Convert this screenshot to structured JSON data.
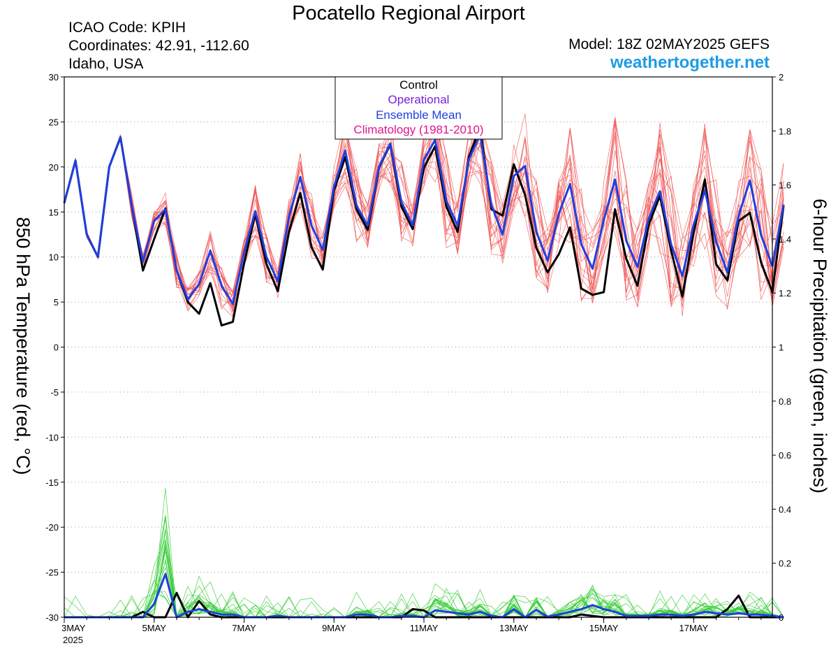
{
  "header": {
    "title": "Pocatello Regional Airport",
    "icao": "ICAO Code: KPIH",
    "coordinates": "Coordinates: 42.91, -112.60",
    "region": "Idaho, USA",
    "model": "Model: 18Z 02MAY2025 GEFS",
    "site": "weathertogether.net"
  },
  "colors": {
    "control": "#000000",
    "operational": "#7a1fd8",
    "ensemble_mean": "#1f3fe0",
    "climatology": "#e0148c",
    "member_temp": "#f05555",
    "member_precip": "#33cc33",
    "site": "#1e9be8"
  },
  "chart_data": {
    "type": "line",
    "left_axis": {
      "label": "850 hPa Temperature (red, °C)",
      "ylim": [
        -30,
        30
      ],
      "ticks": [
        "30",
        "25",
        "20",
        "15",
        "10",
        "5",
        "0",
        "-5",
        "-10",
        "-15",
        "-20",
        "-25",
        "-30"
      ]
    },
    "right_axis": {
      "label": "6-hour Precipitation (green, inches)",
      "ylim": [
        0,
        2
      ],
      "ticks": [
        "2",
        "1.8",
        "1.6",
        "1.4",
        "1.2",
        "1",
        "0.8",
        "0.6",
        "0.4",
        "0.2",
        "0"
      ]
    },
    "x_axis": {
      "range_days": [
        3,
        18.75
      ],
      "tick_labels": [
        {
          "day": 3,
          "label": "3MAY"
        },
        {
          "day": 5,
          "label": "5MAY"
        },
        {
          "day": 7,
          "label": "7MAY"
        },
        {
          "day": 9,
          "label": "9MAY"
        },
        {
          "day": 11,
          "label": "11MAY"
        },
        {
          "day": 13,
          "label": "13MAY"
        },
        {
          "day": 15,
          "label": "15MAY"
        },
        {
          "day": 17,
          "label": "17MAY"
        }
      ],
      "year_label": "2025",
      "step_hours": 6
    },
    "grid": true,
    "legend": {
      "placement": "top-center",
      "entries": [
        "Control",
        "Operational",
        "Ensemble Mean",
        "Climatology (1981-2010)"
      ]
    },
    "series": [
      {
        "name": "Control",
        "quantity": "temperature",
        "values": [
          16,
          20.7,
          12.5,
          10,
          20,
          23.3,
          15.7,
          8.5,
          12,
          15.4,
          8.5,
          5,
          3.7,
          7.1,
          2.4,
          2.8,
          9.3,
          14.8,
          9.2,
          6.2,
          12.8,
          17.1,
          11.1,
          8.6,
          17.4,
          21.1,
          15.3,
          13,
          19.9,
          22.5,
          15.6,
          13.1,
          19.9,
          22.3,
          15.6,
          12.8,
          21.1,
          24.4,
          15.3,
          14.6,
          20.3,
          16.9,
          11,
          8.3,
          10.3,
          13.3,
          6.5,
          5.8,
          6.1,
          15.3,
          9.8,
          6.8,
          13.6,
          16.8,
          10.7,
          5.6,
          12.7,
          18.6,
          9.2,
          7.4,
          14,
          14.9,
          9.4,
          6.1,
          15.7
        ]
      },
      {
        "name": "Ensemble Mean",
        "quantity": "temperature",
        "values": [
          16,
          20.7,
          12.5,
          10,
          20,
          23.3,
          15.7,
          9.5,
          14,
          15.3,
          8.5,
          5.3,
          7,
          10.7,
          6.8,
          4.8,
          10.5,
          15.1,
          10,
          7.3,
          14.5,
          18.9,
          13.5,
          10.8,
          17.8,
          21.8,
          15.7,
          13.5,
          20,
          22.6,
          16.1,
          13.5,
          20.8,
          23,
          16.2,
          13.5,
          20.8,
          23.6,
          15.8,
          12.5,
          19,
          20.1,
          12.8,
          9.6,
          14.8,
          18.1,
          11.4,
          8.7,
          14.1,
          18.6,
          11.8,
          8.9,
          14.3,
          17.3,
          11.4,
          7.9,
          13.6,
          17.4,
          11.7,
          8.3,
          14.6,
          18.5,
          12.4,
          9,
          15.8
        ]
      },
      {
        "name": "Control",
        "quantity": "precipitation",
        "values": [
          0,
          0,
          0,
          0,
          0,
          0,
          0,
          0.02,
          0,
          0,
          0.09,
          0,
          0.06,
          0.01,
          0,
          0,
          0,
          0,
          0,
          0,
          0,
          0,
          0,
          0,
          0,
          0,
          0,
          0,
          0,
          0,
          0,
          0.03,
          0.025,
          0,
          0,
          0,
          0,
          0,
          0,
          0,
          0,
          0,
          0,
          0,
          0,
          0,
          0.01,
          0.005,
          0,
          0,
          0,
          0,
          0,
          0,
          0,
          0,
          0,
          0,
          0,
          0.03,
          0.08,
          0,
          0,
          0,
          0
        ]
      },
      {
        "name": "Ensemble Mean",
        "quantity": "precipitation",
        "values": [
          0,
          0,
          0,
          0,
          0,
          0,
          0,
          0,
          0.05,
          0.16,
          0,
          0.02,
          0.03,
          0.02,
          0.01,
          0.01,
          0,
          0,
          0,
          0.005,
          0,
          0,
          0,
          0,
          0,
          0,
          0.01,
          0.01,
          0,
          0,
          0.005,
          0.005,
          0,
          0.025,
          0.02,
          0.015,
          0.01,
          0.02,
          0.005,
          0,
          0.03,
          0,
          0.027,
          0.002,
          0.01,
          0.02,
          0.03,
          0.045,
          0.03,
          0.02,
          0.005,
          0.005,
          0.005,
          0.01,
          0.01,
          0.005,
          0.01,
          0.02,
          0.015,
          0.01,
          0.015,
          0.01,
          0.01,
          0.005,
          0
        ]
      }
    ]
  }
}
